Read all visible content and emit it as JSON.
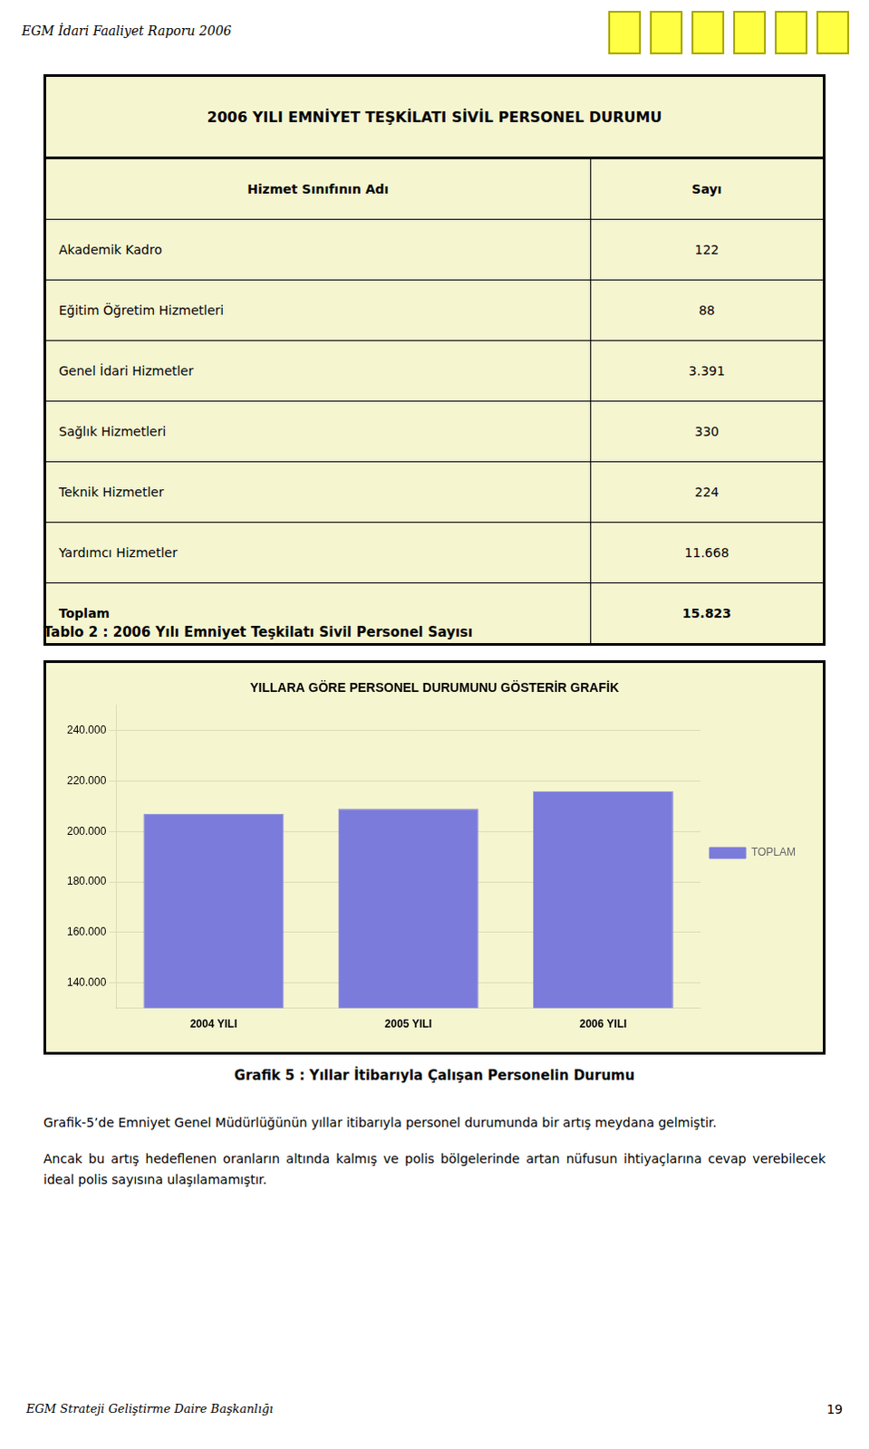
{
  "header_text": "EGM İdari Faaliyet Raporu 2006",
  "table": {
    "title": "2006 YILI EMNİYET TEŞKİLATI SİVİL PERSONEL DURUMU",
    "columns": [
      "Hizmet Sınıfının Adı",
      "Sayı"
    ],
    "rows": [
      [
        "Akademik Kadro",
        "122"
      ],
      [
        "Eğitim Öğretim Hizmetleri",
        "88"
      ],
      [
        "Genel İdari Hizmetler",
        "3.391"
      ],
      [
        "Sağlık Hizmetleri",
        "330"
      ],
      [
        "Teknik Hizmetler",
        "224"
      ],
      [
        "Yardımcı Hizmetler",
        "11.668"
      ],
      [
        "Toplam",
        "15.823"
      ]
    ],
    "caption": "Tablo 2 : 2006 Yılı Emniyet Teşkilatı Sivil Personel Sayısı"
  },
  "chart_data": {
    "type": "bar",
    "title": "YILLARA GÖRE PERSONEL DURUMUNU GÖSTERİR GRAFİK",
    "categories": [
      "2004 YILI",
      "2005 YILI",
      "2006 YILI"
    ],
    "series": [
      {
        "name": "TOPLAM",
        "color": "#7b7bdb",
        "values": [
          207000,
          209000,
          216000
        ]
      }
    ],
    "ylim": [
      130000,
      250000
    ],
    "yticks": [
      {
        "value": 140000,
        "label": "140.000"
      },
      {
        "value": 160000,
        "label": "160.000"
      },
      {
        "value": 180000,
        "label": "180.000"
      },
      {
        "value": 200000,
        "label": "200.000"
      },
      {
        "value": 220000,
        "label": "220.000"
      },
      {
        "value": 240000,
        "label": "240.000"
      }
    ],
    "grid": true,
    "legend": "right"
  },
  "chart_caption": "Grafik 5 : Yıllar İtibarıyla Çalışan Personelin Durumu",
  "body_text": [
    "Grafik-5’de  Emniyet  Genel  Müdürlüğünün  yıllar  itibarıyla  personel  durumunda  bir  artış  meydana gelmiştir.",
    "Ancak bu artış hedeflenen oranların altında kalmış ve polis bölgelerinde artan nüfusun ihtiyaçlarına cevap verebilecek ideal polis sayısına ulaşılamamıştır."
  ],
  "footer_text": "EGM Strateji Geliştirme Daire Başkanlığı",
  "footer_page": "19"
}
